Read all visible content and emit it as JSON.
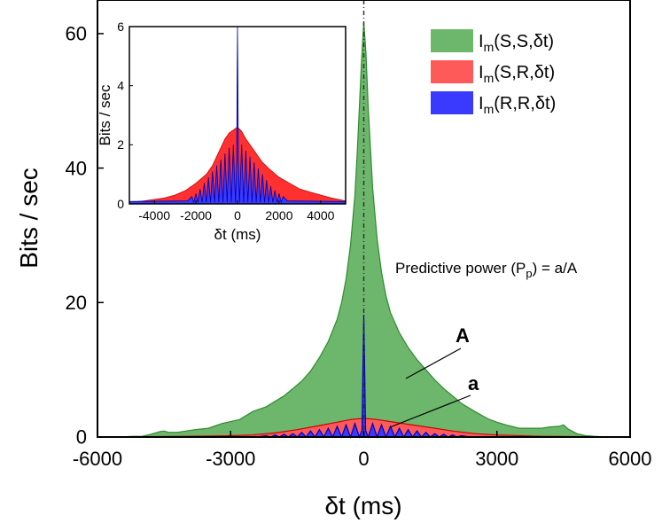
{
  "chart_data": [
    {
      "name": "main",
      "type": "area",
      "xlabel": "δt (ms)",
      "ylabel": "Bits / sec",
      "xlim": [
        -6000,
        6000
      ],
      "ylim": [
        0,
        65
      ],
      "xticks": [
        -6000,
        -3000,
        0,
        3000,
        6000
      ],
      "yticks": [
        0,
        20,
        40,
        60
      ],
      "xtick_labels": [
        "-6000",
        "-3000",
        "0",
        "3000",
        "6000"
      ],
      "ytick_labels": [
        "0",
        "20",
        "40",
        "60"
      ],
      "vline_x": 0,
      "legend": {
        "placement": "top-right",
        "entries": [
          {
            "label": "Im(S,S,δt)",
            "main": "I",
            "sub": "m",
            "rest": "(S,S,δt)",
            "color": "#6db76d"
          },
          {
            "label": "Im(S,R,δt)",
            "main": "I",
            "sub": "m",
            "rest": "(S,R,δt)",
            "color": "#ff5a5a"
          },
          {
            "label": "Im(R,R,δt)",
            "main": "I",
            "sub": "m",
            "rest": "(R,R,δt)",
            "color": "#3a3aff"
          }
        ]
      },
      "annotations": {
        "formula": {
          "prefix": "Predictive power (P",
          "sub": "p",
          "suffix": ") = a/A"
        },
        "label_A": "A",
        "label_a": "a"
      },
      "series": [
        {
          "name": "Im(S,S,δt)",
          "color": "#6db76d",
          "edge": "#2e8b2e",
          "x": [
            -6000,
            -5500,
            -5200,
            -5000,
            -4800,
            -4600,
            -4500,
            -4400,
            -4200,
            -4000,
            -3800,
            -3500,
            -3200,
            -3000,
            -2800,
            -2500,
            -2200,
            -2000,
            -1800,
            -1600,
            -1400,
            -1200,
            -1000,
            -800,
            -600,
            -500,
            -400,
            -300,
            -200,
            -150,
            -100,
            -50,
            0,
            50,
            100,
            150,
            200,
            300,
            400,
            500,
            600,
            800,
            1000,
            1200,
            1400,
            1600,
            1800,
            2000,
            2200,
            2500,
            2800,
            3000,
            3200,
            3500,
            3800,
            4000,
            4200,
            4400,
            4500,
            4600,
            4800,
            5000,
            5200,
            5500,
            6000
          ],
          "y": [
            0,
            0,
            0.1,
            0.1,
            0.4,
            0.8,
            0.9,
            0.7,
            0.7,
            0.9,
            1.1,
            1.3,
            2.0,
            2.3,
            2.6,
            3.8,
            4.5,
            5.3,
            6.1,
            7.2,
            8.3,
            9.8,
            11.8,
            14.2,
            17.5,
            20.0,
            23.5,
            28.5,
            36.0,
            42.0,
            49.0,
            56.0,
            61.7,
            57.0,
            49.0,
            43.0,
            37.0,
            29.5,
            24.5,
            21.0,
            18.5,
            15.5,
            13.3,
            11.5,
            10.0,
            8.5,
            7.2,
            6.1,
            5.0,
            3.8,
            2.7,
            2.2,
            1.8,
            1.3,
            1.3,
            1.3,
            1.5,
            1.6,
            1.8,
            1.2,
            0.5,
            0.2,
            0.1,
            0,
            0
          ]
        },
        {
          "name": "Im(S,R,δt)",
          "color": "#ff5a5a",
          "edge": "#cc0000",
          "x": [
            -6000,
            -5000,
            -4000,
            -3000,
            -2500,
            -2000,
            -1500,
            -1000,
            -600,
            -300,
            0,
            300,
            600,
            1000,
            1500,
            2000,
            2500,
            3000,
            4000,
            5000,
            6000
          ],
          "y": [
            0,
            0.05,
            0.1,
            0.2,
            0.3,
            0.6,
            1.1,
            1.7,
            2.2,
            2.6,
            2.8,
            2.6,
            2.3,
            1.9,
            1.4,
            0.9,
            0.5,
            0.3,
            0.1,
            0.05,
            0
          ]
        },
        {
          "name": "Im(R,R,δt)",
          "color": "#3a3aff",
          "edge": "#0000aa",
          "x": [
            -6000,
            -3000,
            -2400,
            -2200,
            -2100,
            -2000,
            -1900,
            -1800,
            -1700,
            -1600,
            -1500,
            -1400,
            -1300,
            -1200,
            -1100,
            -1000,
            -900,
            -800,
            -700,
            -600,
            -500,
            -400,
            -300,
            -200,
            -100,
            -40,
            -20,
            0,
            20,
            40,
            100,
            200,
            300,
            400,
            500,
            600,
            700,
            800,
            900,
            1000,
            1100,
            1200,
            1300,
            1400,
            1500,
            1600,
            1700,
            1800,
            1900,
            2000,
            2100,
            2200,
            2400,
            3000,
            6000
          ],
          "y": [
            0,
            0,
            0,
            0.2,
            0,
            0.3,
            0,
            0.4,
            0,
            0.5,
            0,
            0.7,
            0,
            0.9,
            0,
            1.1,
            0,
            1.3,
            0,
            1.6,
            0,
            1.8,
            0,
            2.0,
            0,
            1.0,
            10.0,
            18.2,
            10.0,
            1.0,
            0,
            2.0,
            0,
            1.8,
            0,
            1.6,
            0,
            1.3,
            0,
            1.1,
            0,
            0.9,
            0,
            0.7,
            0,
            0.5,
            0,
            0.4,
            0,
            0.3,
            0,
            0.2,
            0,
            0,
            0
          ]
        }
      ]
    },
    {
      "name": "inset",
      "type": "area",
      "xlabel": "δt (ms)",
      "ylabel": "Bits / sec",
      "xlim": [
        -5200,
        5200
      ],
      "ylim": [
        0,
        6
      ],
      "xticks": [
        -4000,
        -2000,
        0,
        2000,
        4000
      ],
      "yticks": [
        0,
        2,
        4,
        6
      ],
      "xtick_labels": [
        "-4000",
        "-2000",
        "0",
        "2000",
        "4000"
      ],
      "ytick_labels": [
        "0",
        "2",
        "4",
        "6"
      ],
      "series": [
        {
          "name": "Im(S,R,δt)",
          "color": "#ff3030",
          "edge": "#cc0000",
          "x": [
            -5200,
            -4500,
            -4000,
            -3500,
            -3000,
            -2500,
            -2000,
            -1500,
            -1200,
            -1000,
            -800,
            -600,
            -400,
            -200,
            0,
            200,
            400,
            600,
            800,
            1000,
            1200,
            1500,
            2000,
            2500,
            3000,
            3500,
            4000,
            4500,
            5200
          ],
          "y": [
            0.05,
            0.1,
            0.15,
            0.2,
            0.3,
            0.45,
            0.7,
            1.0,
            1.3,
            1.6,
            1.9,
            2.2,
            2.4,
            2.5,
            2.6,
            2.45,
            2.2,
            2.0,
            1.8,
            1.6,
            1.4,
            1.2,
            0.9,
            0.7,
            0.5,
            0.4,
            0.3,
            0.2,
            0.1
          ]
        },
        {
          "name": "Im(R,R,δt)",
          "color": "#3a3aff",
          "edge": "#0000aa",
          "x": [
            -5200,
            -2400,
            -2200,
            -2100,
            -2000,
            -1900,
            -1800,
            -1700,
            -1600,
            -1500,
            -1400,
            -1300,
            -1200,
            -1100,
            -1000,
            -900,
            -800,
            -700,
            -600,
            -500,
            -400,
            -300,
            -200,
            -100,
            -40,
            -20,
            0,
            20,
            40,
            100,
            200,
            300,
            400,
            500,
            600,
            700,
            800,
            900,
            1000,
            1100,
            1200,
            1300,
            1400,
            1500,
            1600,
            1700,
            1800,
            1900,
            2000,
            2100,
            2200,
            2400,
            5200
          ],
          "y": [
            0.08,
            0.1,
            0.25,
            0.05,
            0.35,
            0.05,
            0.5,
            0.05,
            0.7,
            0.05,
            0.9,
            0.05,
            1.1,
            0.05,
            1.3,
            0.05,
            1.5,
            0.05,
            1.7,
            0.05,
            1.9,
            0.05,
            2.0,
            0.05,
            1.5,
            4.0,
            6.0,
            4.0,
            1.5,
            0.05,
            2.0,
            0.05,
            1.8,
            0.05,
            1.6,
            0.05,
            1.4,
            0.05,
            1.2,
            0.05,
            1.0,
            0.05,
            0.8,
            0.05,
            0.6,
            0.05,
            0.45,
            0.05,
            0.35,
            0.05,
            0.25,
            0.1,
            0.08
          ]
        }
      ]
    }
  ]
}
